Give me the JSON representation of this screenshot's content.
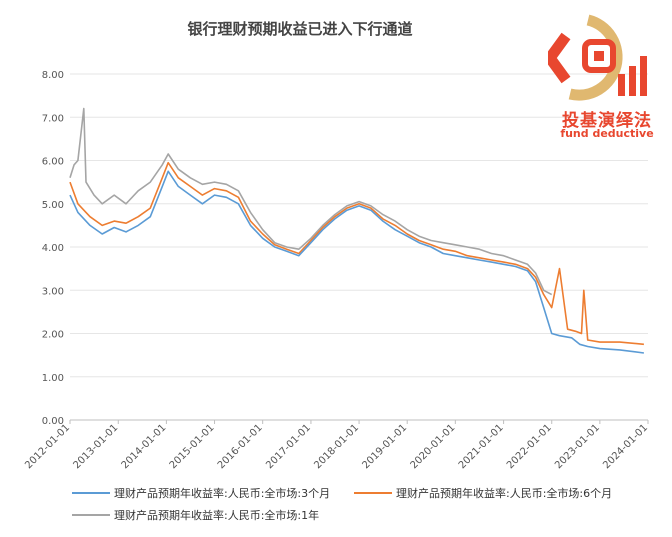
{
  "chart_data": {
    "type": "line",
    "title": "银行理财预期收益已进入下行通道",
    "xlabel": "",
    "ylabel": "",
    "ylim": [
      0,
      8
    ],
    "yticks": [
      "0.00",
      "1.00",
      "2.00",
      "3.00",
      "4.00",
      "5.00",
      "6.00",
      "7.00",
      "8.00"
    ],
    "xticks": [
      "2012-01-01",
      "2013-01-01",
      "2014-01-01",
      "2015-01-01",
      "2016-01-01",
      "2017-01-01",
      "2018-01-01",
      "2019-01-01",
      "2020-01-01",
      "2021-01-01",
      "2022-01-01",
      "2023-01-01",
      "2024-01-01"
    ],
    "grid": "horizontal",
    "legend_position": "bottom",
    "series": [
      {
        "name": "理财产品预期年收益率:人民币:全市场:3个月",
        "color": "#5b9bd5",
        "points": [
          [
            "2012-01-01",
            5.2
          ],
          [
            "2012-03-01",
            4.8
          ],
          [
            "2012-06-01",
            4.5
          ],
          [
            "2012-09-01",
            4.3
          ],
          [
            "2012-12-01",
            4.45
          ],
          [
            "2013-03-01",
            4.35
          ],
          [
            "2013-06-01",
            4.5
          ],
          [
            "2013-09-01",
            4.7
          ],
          [
            "2013-12-01",
            5.4
          ],
          [
            "2014-01-15",
            5.75
          ],
          [
            "2014-04-01",
            5.4
          ],
          [
            "2014-07-01",
            5.2
          ],
          [
            "2014-10-01",
            5.0
          ],
          [
            "2015-01-01",
            5.2
          ],
          [
            "2015-04-01",
            5.15
          ],
          [
            "2015-07-01",
            5.0
          ],
          [
            "2015-10-01",
            4.5
          ],
          [
            "2016-01-01",
            4.2
          ],
          [
            "2016-04-01",
            4.0
          ],
          [
            "2016-07-01",
            3.9
          ],
          [
            "2016-10-01",
            3.8
          ],
          [
            "2017-01-01",
            4.1
          ],
          [
            "2017-04-01",
            4.4
          ],
          [
            "2017-07-01",
            4.65
          ],
          [
            "2017-10-01",
            4.85
          ],
          [
            "2018-01-01",
            4.95
          ],
          [
            "2018-04-01",
            4.85
          ],
          [
            "2018-07-01",
            4.6
          ],
          [
            "2018-10-01",
            4.4
          ],
          [
            "2019-01-01",
            4.25
          ],
          [
            "2019-04-01",
            4.1
          ],
          [
            "2019-07-01",
            4.0
          ],
          [
            "2019-10-01",
            3.85
          ],
          [
            "2020-01-01",
            3.8
          ],
          [
            "2020-04-01",
            3.75
          ],
          [
            "2020-07-01",
            3.7
          ],
          [
            "2020-10-01",
            3.65
          ],
          [
            "2021-01-01",
            3.6
          ],
          [
            "2021-04-01",
            3.55
          ],
          [
            "2021-07-01",
            3.45
          ],
          [
            "2021-09-01",
            3.2
          ],
          [
            "2021-11-01",
            2.6
          ],
          [
            "2022-01-01",
            2.0
          ],
          [
            "2022-03-01",
            1.95
          ],
          [
            "2022-06-01",
            1.9
          ],
          [
            "2022-08-01",
            1.75
          ],
          [
            "2022-10-01",
            1.7
          ],
          [
            "2023-01-01",
            1.65
          ],
          [
            "2023-06-01",
            1.62
          ],
          [
            "2023-12-01",
            1.55
          ]
        ]
      },
      {
        "name": "理财产品预期年收益率:人民币:全市场:6个月",
        "color": "#ed7d31",
        "points": [
          [
            "2012-01-01",
            5.5
          ],
          [
            "2012-03-01",
            5.0
          ],
          [
            "2012-06-01",
            4.7
          ],
          [
            "2012-09-01",
            4.5
          ],
          [
            "2012-12-01",
            4.6
          ],
          [
            "2013-03-01",
            4.55
          ],
          [
            "2013-06-01",
            4.7
          ],
          [
            "2013-09-01",
            4.9
          ],
          [
            "2013-12-01",
            5.6
          ],
          [
            "2014-01-15",
            5.95
          ],
          [
            "2014-04-01",
            5.6
          ],
          [
            "2014-07-01",
            5.4
          ],
          [
            "2014-10-01",
            5.2
          ],
          [
            "2015-01-01",
            5.35
          ],
          [
            "2015-04-01",
            5.3
          ],
          [
            "2015-07-01",
            5.15
          ],
          [
            "2015-10-01",
            4.6
          ],
          [
            "2016-01-01",
            4.3
          ],
          [
            "2016-04-01",
            4.05
          ],
          [
            "2016-07-01",
            3.95
          ],
          [
            "2016-10-01",
            3.85
          ],
          [
            "2017-01-01",
            4.15
          ],
          [
            "2017-04-01",
            4.45
          ],
          [
            "2017-07-01",
            4.7
          ],
          [
            "2017-10-01",
            4.9
          ],
          [
            "2018-01-01",
            5.0
          ],
          [
            "2018-04-01",
            4.9
          ],
          [
            "2018-07-01",
            4.65
          ],
          [
            "2018-10-01",
            4.5
          ],
          [
            "2019-01-01",
            4.3
          ],
          [
            "2019-04-01",
            4.15
          ],
          [
            "2019-07-01",
            4.05
          ],
          [
            "2019-10-01",
            3.95
          ],
          [
            "2020-01-01",
            3.9
          ],
          [
            "2020-04-01",
            3.8
          ],
          [
            "2020-07-01",
            3.75
          ],
          [
            "2020-10-01",
            3.7
          ],
          [
            "2021-01-01",
            3.65
          ],
          [
            "2021-04-01",
            3.6
          ],
          [
            "2021-07-01",
            3.5
          ],
          [
            "2021-09-01",
            3.3
          ],
          [
            "2021-11-01",
            2.9
          ],
          [
            "2022-01-01",
            2.6
          ],
          [
            "2022-03-01",
            3.5
          ],
          [
            "2022-05-01",
            2.1
          ],
          [
            "2022-07-01",
            2.05
          ],
          [
            "2022-08-15",
            2.0
          ],
          [
            "2022-09-01",
            3.0
          ],
          [
            "2022-10-01",
            1.85
          ],
          [
            "2023-01-01",
            1.8
          ],
          [
            "2023-06-01",
            1.8
          ],
          [
            "2023-12-01",
            1.75
          ]
        ]
      },
      {
        "name": "理财产品预期年收益率:人民币:全市场:1年",
        "color": "#a5a5a5",
        "points": [
          [
            "2012-01-01",
            5.6
          ],
          [
            "2012-02-01",
            5.9
          ],
          [
            "2012-03-01",
            6.0
          ],
          [
            "2012-04-15",
            7.2
          ],
          [
            "2012-05-01",
            5.5
          ],
          [
            "2012-07-01",
            5.2
          ],
          [
            "2012-09-01",
            5.0
          ],
          [
            "2012-12-01",
            5.2
          ],
          [
            "2013-03-01",
            5.0
          ],
          [
            "2013-06-01",
            5.3
          ],
          [
            "2013-09-01",
            5.5
          ],
          [
            "2013-12-01",
            5.9
          ],
          [
            "2014-01-15",
            6.15
          ],
          [
            "2014-04-01",
            5.8
          ],
          [
            "2014-07-01",
            5.6
          ],
          [
            "2014-10-01",
            5.45
          ],
          [
            "2015-01-01",
            5.5
          ],
          [
            "2015-04-01",
            5.45
          ],
          [
            "2015-07-01",
            5.3
          ],
          [
            "2015-10-01",
            4.8
          ],
          [
            "2016-01-01",
            4.4
          ],
          [
            "2016-04-01",
            4.1
          ],
          [
            "2016-07-01",
            4.0
          ],
          [
            "2016-10-01",
            3.95
          ],
          [
            "2017-01-01",
            4.2
          ],
          [
            "2017-04-01",
            4.5
          ],
          [
            "2017-07-01",
            4.75
          ],
          [
            "2017-10-01",
            4.95
          ],
          [
            "2018-01-01",
            5.05
          ],
          [
            "2018-04-01",
            4.95
          ],
          [
            "2018-07-01",
            4.75
          ],
          [
            "2018-10-01",
            4.6
          ],
          [
            "2019-01-01",
            4.4
          ],
          [
            "2019-04-01",
            4.25
          ],
          [
            "2019-07-01",
            4.15
          ],
          [
            "2019-10-01",
            4.1
          ],
          [
            "2020-01-01",
            4.05
          ],
          [
            "2020-04-01",
            4.0
          ],
          [
            "2020-07-01",
            3.95
          ],
          [
            "2020-10-01",
            3.85
          ],
          [
            "2021-01-01",
            3.8
          ],
          [
            "2021-04-01",
            3.7
          ],
          [
            "2021-07-01",
            3.6
          ],
          [
            "2021-09-01",
            3.4
          ],
          [
            "2021-11-01",
            3.0
          ],
          [
            "2022-01-01",
            2.9
          ]
        ]
      }
    ]
  },
  "logo": {
    "name_cn": "投基演绎法",
    "name_en": "fund deductive"
  }
}
